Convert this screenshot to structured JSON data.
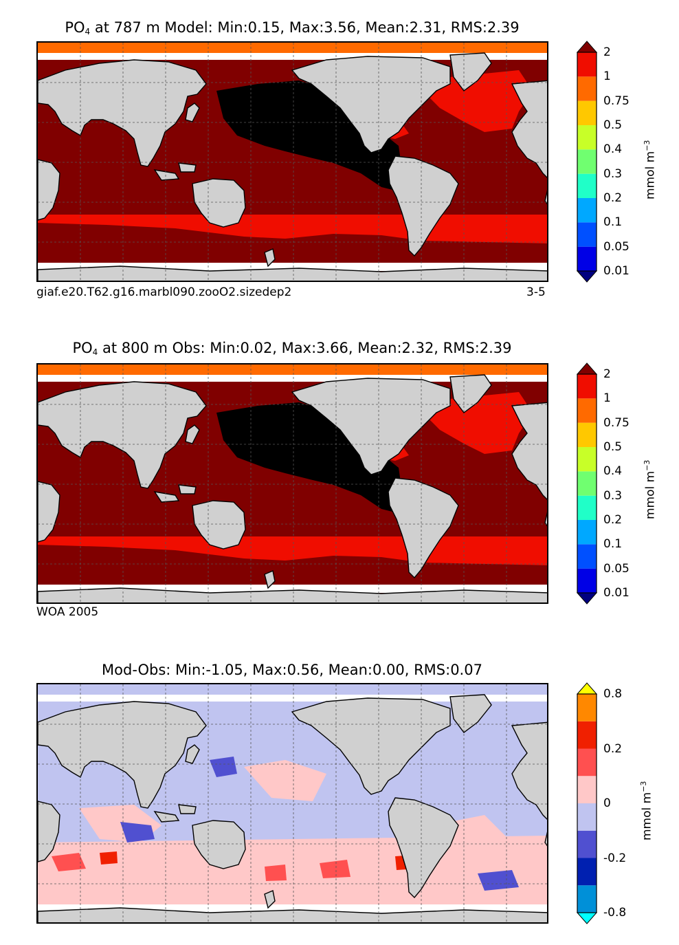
{
  "chart_data": [
    {
      "type": "heatmap",
      "title_prefix": "PO",
      "title_sub": "4",
      "title_rest": " at 787 m Model: Min:0.15, Max:3.56, Mean:2.31, RMS:2.39",
      "caption_left": "giaf.e20.T62.g16.marbl090.zooO2.sizedep2",
      "caption_right": "3-5",
      "colorbar": {
        "levels": [
          "0.01",
          "0.05",
          "0.1",
          "0.2",
          "0.3",
          "0.4",
          "0.5",
          "0.75",
          "1",
          "2"
        ],
        "colors": [
          "#000080",
          "#0000e6",
          "#0050ff",
          "#00a8ff",
          "#20ffc8",
          "#70ff70",
          "#c8ff28",
          "#ffc800",
          "#ff6a00",
          "#f00d00",
          "#800000"
        ],
        "label_base": "mmol m",
        "label_exp": "−3"
      },
      "stats": {
        "min": 0.15,
        "max": 3.56,
        "mean": 2.31,
        "rms": 2.39,
        "depth_m": 787
      }
    },
    {
      "type": "heatmap",
      "title_prefix": "PO",
      "title_sub": "4",
      "title_rest": " at 800 m Obs: Min:0.02, Max:3.66, Mean:2.32, RMS:2.39",
      "caption_left": "WOA 2005",
      "caption_right": "",
      "colorbar": {
        "levels": [
          "0.01",
          "0.05",
          "0.1",
          "0.2",
          "0.3",
          "0.4",
          "0.5",
          "0.75",
          "1",
          "2"
        ],
        "colors": [
          "#000080",
          "#0000e6",
          "#0050ff",
          "#00a8ff",
          "#20ffc8",
          "#70ff70",
          "#c8ff28",
          "#ffc800",
          "#ff6a00",
          "#f00d00",
          "#800000"
        ],
        "label_base": "mmol m",
        "label_exp": "−3"
      },
      "stats": {
        "min": 0.02,
        "max": 3.66,
        "mean": 2.32,
        "rms": 2.39,
        "depth_m": 800
      }
    },
    {
      "type": "heatmap",
      "title_prefix": "",
      "title_sub": "",
      "title_rest": "Mod-Obs: Min:-1.05, Max:0.56, Mean:0.00, RMS:0.07",
      "caption_left": "",
      "caption_right": "",
      "colorbar": {
        "levels": [
          "-0.8",
          "",
          "-0.2",
          "",
          "0",
          "",
          "0.2",
          "",
          "0.8"
        ],
        "colors": [
          "#00ffff",
          "#0090d8",
          "#0020b0",
          "#5050d0",
          "#c0c4f0",
          "#ffc8c8",
          "#ff5050",
          "#f02000",
          "#ff8800",
          "#ffff00"
        ],
        "label_base": "mmol m",
        "label_exp": "−3"
      },
      "stats": {
        "min": -1.05,
        "max": 0.56,
        "mean": 0.0,
        "rms": 0.07
      }
    }
  ],
  "colors": {
    "land": "#d0d0d0",
    "nodata": "#ffffff",
    "grid": "#555555"
  }
}
